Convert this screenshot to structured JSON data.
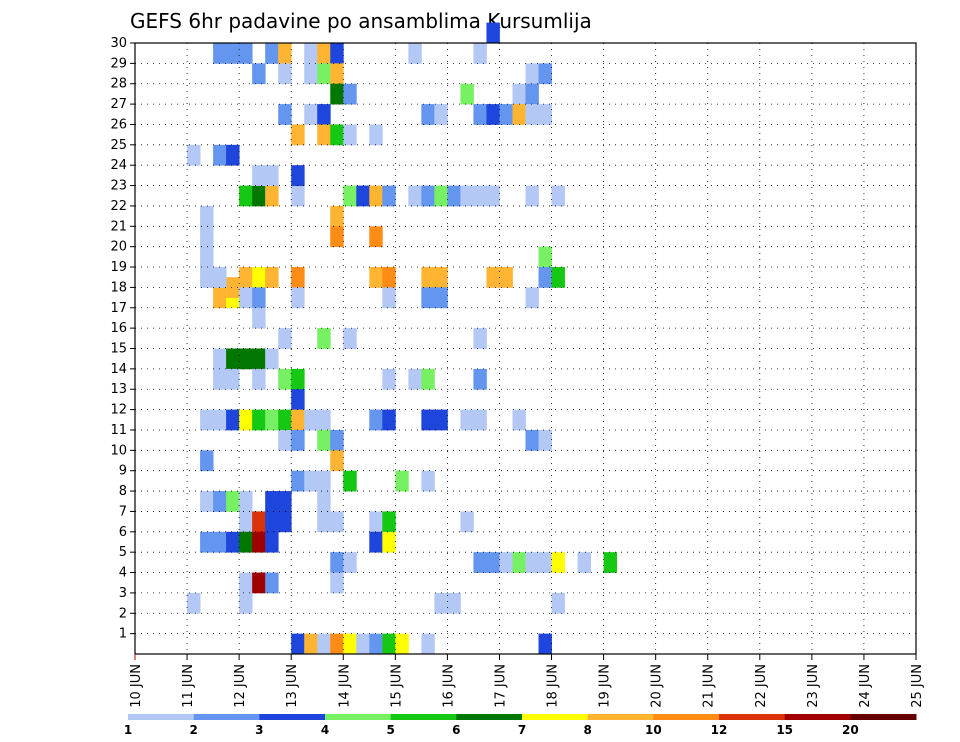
{
  "chart_data": {
    "type": "heatmap",
    "title": "GEFS 6hr padavine po ansamblima Kursumlija",
    "xlabel": "",
    "ylabel": "",
    "x_ticks": [
      "10 JUN",
      "11 JUN",
      "12 JUN",
      "13 JUN",
      "14 JUN",
      "15 JUN",
      "16 JUN",
      "17 JUN",
      "18 JUN",
      "19 JUN",
      "20 JUN",
      "21 JUN",
      "22 JUN",
      "23 JUN",
      "24 JUN",
      "25 JUN"
    ],
    "y_ticks": [
      "1",
      "2",
      "3",
      "4",
      "5",
      "6",
      "7",
      "8",
      "9",
      "10",
      "11",
      "12",
      "13",
      "14",
      "15",
      "16",
      "17",
      "18",
      "19",
      "20",
      "21",
      "22",
      "23",
      "24",
      "25",
      "26",
      "27",
      "28",
      "29",
      "30"
    ],
    "grid": true,
    "legend_position": "bottom",
    "color_scale": {
      "thresholds": [
        "1",
        "2",
        "3",
        "4",
        "5",
        "6",
        "7",
        "8",
        "10",
        "12",
        "15",
        "20"
      ],
      "colors": [
        "#b4c8f5",
        "#6496f0",
        "#1e46dc",
        "#78f064",
        "#14c814",
        "#007800",
        "#ffff00",
        "#ffb432",
        "#ff8c14",
        "#dc320a",
        "#a00000",
        "#640000"
      ]
    },
    "cells": [
      [
        17,
        1.5,
        8.5
      ],
      [
        17,
        1.75,
        7.5
      ],
      [
        17.5,
        1.75,
        8.5
      ],
      [
        17.5,
        2,
        7.5
      ],
      [
        18,
        2,
        8.5
      ],
      [
        18,
        2.25,
        7.5
      ],
      [
        18,
        2.5,
        9.5
      ],
      [
        18,
        3,
        10
      ],
      [
        18,
        4.5,
        8.5
      ],
      [
        18,
        4.75,
        10
      ],
      [
        18,
        5.5,
        8.5
      ],
      [
        18,
        5.75,
        8.5
      ],
      [
        18,
        6.75,
        8.5
      ],
      [
        18,
        7,
        9.5
      ],
      [
        20,
        4.5,
        11
      ],
      [
        22,
        2,
        5.5
      ],
      [
        22,
        2.25,
        6.5
      ],
      [
        22,
        2.5,
        8.5
      ],
      [
        22,
        3,
        1.5
      ],
      [
        22,
        4,
        4.5
      ],
      [
        22,
        4.25,
        3.5
      ],
      [
        22,
        4.5,
        8.5
      ],
      [
        22,
        4.75,
        2.5
      ],
      [
        22,
        5.25,
        1.5
      ],
      [
        22,
        5.5,
        2.5
      ],
      [
        22,
        5.75,
        4.5
      ],
      [
        22,
        6,
        2.5
      ],
      [
        22,
        6.25,
        1.5
      ],
      [
        22,
        6.5,
        1.5
      ],
      [
        22,
        6.75,
        1.5
      ],
      [
        22,
        7.5,
        1.5
      ],
      [
        22,
        8,
        1.5
      ],
      [
        21,
        1.25,
        1.5
      ],
      [
        20,
        1.25,
        1.5
      ],
      [
        19,
        1.25,
        1.5
      ],
      [
        18,
        1.25,
        1.5
      ],
      [
        18,
        1.5,
        1.5
      ],
      [
        11,
        1.25,
        1.5
      ],
      [
        7,
        1.25,
        1.5
      ],
      [
        24,
        1.0,
        1.5
      ],
      [
        29,
        1.5,
        2.5
      ],
      [
        29,
        1.75,
        2.5
      ],
      [
        29,
        2.0,
        2.5
      ],
      [
        29,
        2.5,
        2.5
      ],
      [
        29,
        2.75,
        8.5
      ],
      [
        29,
        3.25,
        1.5
      ],
      [
        29,
        3.5,
        9.5
      ],
      [
        29,
        3.75,
        3.5
      ],
      [
        29,
        5.25,
        1.5
      ],
      [
        29,
        6.5,
        1.5
      ],
      [
        28,
        2.25,
        2.5
      ],
      [
        28,
        2.75,
        1.5
      ],
      [
        28,
        3.25,
        1.5
      ],
      [
        28,
        3.5,
        4.5
      ],
      [
        28,
        3.75,
        8.5
      ],
      [
        28,
        7.5,
        1.5
      ],
      [
        28,
        7.75,
        2.5
      ],
      [
        27,
        3.75,
        6.5
      ],
      [
        27,
        4,
        2.5
      ],
      [
        27,
        6.25,
        4.5
      ],
      [
        27,
        7.25,
        1.5
      ],
      [
        27,
        7.5,
        2.5
      ],
      [
        26,
        2.75,
        2.5
      ],
      [
        26,
        3.25,
        1.5
      ],
      [
        26,
        3.5,
        3.5
      ],
      [
        26,
        5.5,
        2.5
      ],
      [
        26,
        5.75,
        1.5
      ],
      [
        26,
        6.5,
        2.5
      ],
      [
        26,
        6.75,
        3.5
      ],
      [
        26,
        7,
        2.5
      ],
      [
        26,
        7.25,
        9.5
      ],
      [
        26,
        7.5,
        1.5
      ],
      [
        26,
        7.75,
        1.5
      ],
      [
        25,
        3,
        9.5
      ],
      [
        25,
        3.5,
        9.5
      ],
      [
        25,
        3.75,
        5.5
      ],
      [
        25,
        4,
        1.5
      ],
      [
        25,
        4.5,
        1.5
      ],
      [
        24,
        1.5,
        2.5
      ],
      [
        24,
        1.75,
        3.5
      ],
      [
        23,
        2.25,
        1.5
      ],
      [
        23,
        2.5,
        1.5
      ],
      [
        23,
        3,
        3.5
      ],
      [
        30,
        6.75,
        3.5
      ],
      [
        21,
        3.75,
        9.5
      ],
      [
        20,
        3.75,
        10
      ],
      [
        19,
        7.75,
        4.5
      ],
      [
        18,
        7.75,
        2.5
      ],
      [
        18,
        8,
        5.5
      ],
      [
        17,
        2,
        1.5
      ],
      [
        17,
        2.25,
        2.5
      ],
      [
        17,
        3,
        1.5
      ],
      [
        17,
        4.75,
        1.5
      ],
      [
        17,
        5.5,
        2.5
      ],
      [
        17,
        5.75,
        2.5
      ],
      [
        17,
        7.5,
        1.5
      ],
      [
        16,
        2.25,
        1.5
      ],
      [
        15,
        2.75,
        1.5
      ],
      [
        15,
        3.5,
        4.5
      ],
      [
        15,
        4,
        1.5
      ],
      [
        15,
        6.5,
        1.5
      ],
      [
        14,
        1.5,
        1.5
      ],
      [
        14,
        1.75,
        6.5
      ],
      [
        14,
        2,
        6.5
      ],
      [
        14,
        2.25,
        6.5
      ],
      [
        14,
        2.5,
        1.5
      ],
      [
        13,
        1.5,
        1.5
      ],
      [
        13,
        1.75,
        1.5
      ],
      [
        13,
        2.25,
        1.5
      ],
      [
        13,
        2.75,
        4.5
      ],
      [
        13,
        3,
        5.5
      ],
      [
        13,
        4.75,
        1.5
      ],
      [
        13,
        5.25,
        1.5
      ],
      [
        13,
        5.5,
        4.5
      ],
      [
        13,
        6.5,
        2.5
      ],
      [
        12,
        3,
        3.5
      ],
      [
        11,
        1.5,
        1.5
      ],
      [
        11,
        1.75,
        3.5
      ],
      [
        11,
        2,
        7.5
      ],
      [
        11,
        2.25,
        5.5
      ],
      [
        11,
        2.5,
        4.5
      ],
      [
        11,
        2.75,
        5.5
      ],
      [
        11,
        3,
        9.5
      ],
      [
        11,
        3.25,
        1.5
      ],
      [
        11,
        3.5,
        1.5
      ],
      [
        11,
        4.5,
        2.5
      ],
      [
        11,
        4.75,
        3.5
      ],
      [
        11,
        5.5,
        3.5
      ],
      [
        11,
        5.75,
        3.5
      ],
      [
        11,
        6.25,
        1.5
      ],
      [
        11,
        6.5,
        1.5
      ],
      [
        11,
        7.25,
        1.5
      ],
      [
        10,
        2.75,
        1.5
      ],
      [
        10,
        3,
        2.5
      ],
      [
        10,
        3.5,
        4.5
      ],
      [
        10,
        3.75,
        2.5
      ],
      [
        10,
        7.5,
        2.5
      ],
      [
        10,
        7.75,
        1.5
      ],
      [
        9,
        1.25,
        2.5
      ],
      [
        9,
        3.75,
        9.5
      ],
      [
        8,
        3,
        2.5
      ],
      [
        8,
        3.25,
        1.5
      ],
      [
        8,
        3.5,
        1.5
      ],
      [
        8,
        4,
        5.5
      ],
      [
        8,
        5,
        4.5
      ],
      [
        8,
        5.5,
        1.5
      ],
      [
        7,
        1.5,
        2.5
      ],
      [
        7,
        1.75,
        4.5
      ],
      [
        7,
        2,
        1.5
      ],
      [
        7,
        2.5,
        3.5
      ],
      [
        7,
        2.75,
        3.5
      ],
      [
        7,
        3.5,
        1.5
      ],
      [
        6,
        2,
        1.5
      ],
      [
        6,
        2.25,
        12
      ],
      [
        6,
        2.5,
        3.5
      ],
      [
        6,
        2.75,
        3.5
      ],
      [
        6,
        3.5,
        1.5
      ],
      [
        6,
        3.75,
        1.5
      ],
      [
        6,
        4.5,
        1.5
      ],
      [
        6,
        4.75,
        5.5
      ],
      [
        6,
        6.25,
        1.5
      ],
      [
        5,
        1.25,
        2.5
      ],
      [
        5,
        1.5,
        2.5
      ],
      [
        5,
        1.75,
        3.5
      ],
      [
        5,
        2,
        6.5
      ],
      [
        5,
        2.25,
        15
      ],
      [
        5,
        2.5,
        3.5
      ],
      [
        5,
        4.5,
        3.5
      ],
      [
        5,
        4.75,
        7.5
      ],
      [
        4,
        3.75,
        2.5
      ],
      [
        4,
        4,
        1.5
      ],
      [
        4,
        6.5,
        2.5
      ],
      [
        4,
        6.75,
        2.5
      ],
      [
        4,
        7,
        1.5
      ],
      [
        4,
        7.25,
        4.5
      ],
      [
        4,
        7.5,
        1.5
      ],
      [
        4,
        7.75,
        1.5
      ],
      [
        4,
        8,
        7.5
      ],
      [
        4,
        8.5,
        1.5
      ],
      [
        4,
        9,
        5.5
      ],
      [
        3,
        2,
        1.5
      ],
      [
        3,
        2.25,
        15
      ],
      [
        3,
        2.5,
        2.5
      ],
      [
        3,
        3.75,
        1.5
      ],
      [
        2,
        1,
        1.5
      ],
      [
        2,
        2,
        1.5
      ],
      [
        2,
        5.75,
        1.5
      ],
      [
        2,
        6,
        1.5
      ],
      [
        2,
        8,
        1.5
      ],
      [
        0,
        3,
        3.5
      ],
      [
        0,
        3.25,
        9.5
      ],
      [
        0,
        3.5,
        1.5
      ],
      [
        0,
        3.75,
        11
      ],
      [
        0,
        4,
        7.5
      ],
      [
        0,
        4.25,
        1.5
      ],
      [
        0,
        4.5,
        2.5
      ],
      [
        0,
        4.75,
        5.5
      ],
      [
        0,
        5,
        7.5
      ],
      [
        0,
        5.5,
        1.5
      ],
      [
        0,
        7.75,
        3.5
      ]
    ]
  }
}
